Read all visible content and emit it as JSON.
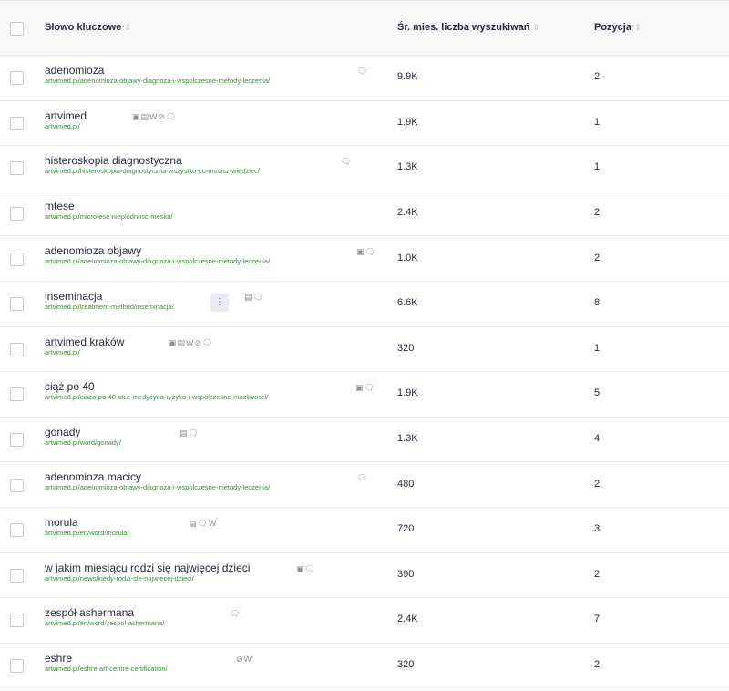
{
  "header": {
    "keyword": "Słowo kluczowe",
    "volume": "Śr. mies. liczba wyszukiwań",
    "position": "Pozycja",
    "sort_glyph": "⇕"
  },
  "more_glyph": "⋮",
  "rows": [
    {
      "keyword": "adenomioza",
      "url": "artvimed.pl/adenomioza-objawy-diagnoza-i-wspolczesne-metody-leczenia/",
      "icons": "🗨",
      "volume": "9.9K",
      "position": "2"
    },
    {
      "keyword": "artvimed",
      "url": "artvimed.pl/",
      "icons": "▣▤W⊘🗨",
      "volume": "1.9K",
      "position": "1"
    },
    {
      "keyword": "histeroskopia diagnostyczna",
      "url": "artvimed.pl/histeroskopia-diagnostyczna-wszystko-co-musisz-wiedziec/",
      "icons": "🗨",
      "volume": "1.3K",
      "position": "1"
    },
    {
      "keyword": "mtese",
      "url": "artvimed.pl/microtese-nieplodnosc-meska/",
      "icons": "",
      "volume": "2.4K",
      "position": "2"
    },
    {
      "keyword": "adenomioza objawy",
      "url": "artvimed.pl/adenomioza-objawy-diagnoza-i-wspolczesne-metody-leczenia/",
      "icons": "▣🗨",
      "volume": "1.0K",
      "position": "2"
    },
    {
      "keyword": "inseminacja",
      "url": "artvimed.pl/treatment-method/inseminacja/",
      "icons": "▤🗨",
      "volume": "6.6K",
      "position": "8"
    },
    {
      "keyword": "artvimed kraków",
      "url": "artvimed.pl/",
      "icons": "▣▤W⊘🗨",
      "volume": "320",
      "position": "1"
    },
    {
      "keyword": "ciąż po 40",
      "url": "artvimed.pl/ciaza-po-40-stce-medycyna-ryzyko-i-wspolczesne-mozliwosci/",
      "icons": "▣🗨",
      "volume": "1.9K",
      "position": "5"
    },
    {
      "keyword": "gonady",
      "url": "artvimed.pl/word/gonady/",
      "icons": "▤🗨",
      "volume": "1.3K",
      "position": "4"
    },
    {
      "keyword": "adenomioza macicy",
      "url": "artvimed.pl/adenomioza-objawy-diagnoza-i-wspolczesne-metody-leczenia/",
      "icons": "🗨",
      "volume": "480",
      "position": "2"
    },
    {
      "keyword": "morula",
      "url": "artvimed.pl/en/word/morula/",
      "icons": "▤🗨W",
      "volume": "720",
      "position": "3"
    },
    {
      "keyword": "w jakim miesiącu rodzi się najwięcej dzieci",
      "url": "artvimed.pl/news/kiedy-rodzi-sie-najwiecej-dzieci/",
      "icons": "▣🗨",
      "volume": "390",
      "position": "2"
    },
    {
      "keyword": "zespół ashermana",
      "url": "artvimed.pl/en/word/zespol-ashermana/",
      "icons": "🗨",
      "volume": "2.4K",
      "position": "7"
    },
    {
      "keyword": "eshre",
      "url": "artvimed.pl/eshre-art-centre-certification/",
      "icons": "⊘W",
      "volume": "320",
      "position": "2"
    }
  ]
}
